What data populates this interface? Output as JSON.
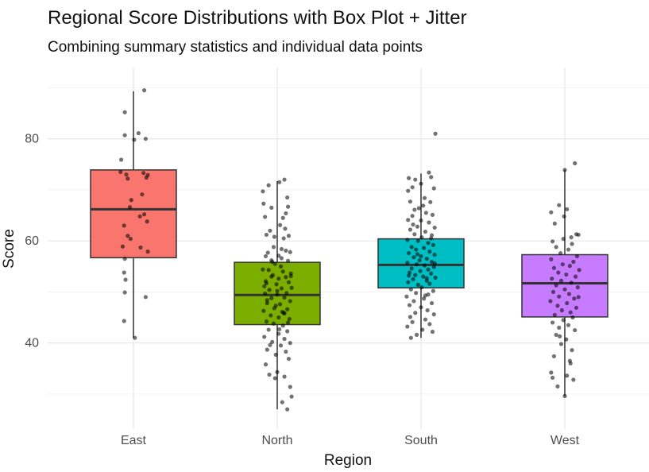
{
  "chart_data": {
    "type": "box",
    "title": "Regional Score Distributions with Box Plot + Jitter",
    "subtitle": "Combining summary statistics and individual data points",
    "xlabel": "Region",
    "ylabel": "Score",
    "ylim": [
      25,
      91
    ],
    "yticks": [
      40,
      60,
      80
    ],
    "grid": true,
    "legend": "none",
    "categories": [
      "East",
      "North",
      "South",
      "West"
    ],
    "colors": [
      "#F8766D",
      "#7CAE00",
      "#00BFC4",
      "#C77CFF"
    ],
    "boxes": [
      {
        "q1": 56.7,
        "median": 66.2,
        "q3": 73.9,
        "whisker_low": 41.0,
        "whisker_high": 89.3
      },
      {
        "q1": 43.6,
        "median": 49.4,
        "q3": 55.8,
        "whisker_low": 27.0,
        "whisker_high": 71.7
      },
      {
        "q1": 50.8,
        "median": 55.3,
        "q3": 60.4,
        "whisker_low": 41.0,
        "whisker_high": 73.2
      },
      {
        "q1": 45.1,
        "median": 51.7,
        "q3": 57.3,
        "whisker_low": 29.6,
        "whisker_high": 73.9
      }
    ],
    "points": [
      [
        [
          -0.13,
          44.3
        ],
        [
          0.02,
          41.0
        ],
        [
          -0.12,
          85.2
        ],
        [
          -0.12,
          80.7
        ],
        [
          0.01,
          79.8
        ],
        [
          0.07,
          81.1
        ],
        [
          0.17,
          80.0
        ],
        [
          -0.17,
          75.9
        ],
        [
          -0.18,
          73.5
        ],
        [
          -0.1,
          73.0
        ],
        [
          -0.08,
          72.2
        ],
        [
          0.14,
          73.3
        ],
        [
          0.18,
          72.4
        ],
        [
          0.2,
          72.9
        ],
        [
          -0.03,
          68.0
        ],
        [
          0.12,
          69.1
        ],
        [
          -0.05,
          66.6
        ],
        [
          0.15,
          65.2
        ],
        [
          0.09,
          64.8
        ],
        [
          0.19,
          63.8
        ],
        [
          -0.13,
          63.0
        ],
        [
          -0.08,
          61.0
        ],
        [
          -0.04,
          60.4
        ],
        [
          -0.15,
          58.9
        ],
        [
          0.1,
          58.7
        ],
        [
          0.2,
          57.9
        ],
        [
          -0.12,
          56.5
        ],
        [
          -0.11,
          52.4
        ],
        [
          -0.12,
          49.9
        ],
        [
          -0.13,
          53.8
        ],
        [
          0.17,
          49.0
        ],
        [
          0.15,
          89.5
        ]
      ],
      [
        [
          -0.2,
          69.7
        ],
        [
          -0.12,
          70.9
        ],
        [
          0.03,
          71.5
        ],
        [
          0.1,
          72.0
        ],
        [
          0.14,
          68.5
        ],
        [
          -0.19,
          67.3
        ],
        [
          -0.08,
          66.5
        ],
        [
          0.15,
          66.7
        ],
        [
          -0.17,
          64.7
        ],
        [
          0.08,
          64.5
        ],
        [
          0.12,
          65.4
        ],
        [
          0.04,
          63.1
        ],
        [
          -0.1,
          62.0
        ],
        [
          -0.15,
          61.2
        ],
        [
          0.09,
          60.5
        ],
        [
          0.16,
          61.0
        ],
        [
          -0.05,
          58.8
        ],
        [
          0.12,
          58.1
        ],
        [
          0.02,
          57.1
        ],
        [
          0.18,
          57.8
        ],
        [
          -0.16,
          57.0
        ],
        [
          -0.08,
          56.2
        ],
        [
          0.06,
          56.6
        ],
        [
          0.15,
          56.1
        ],
        [
          -0.03,
          55.5
        ],
        [
          -0.2,
          54.4
        ],
        [
          -0.12,
          54.3
        ],
        [
          0.08,
          54.0
        ],
        [
          0.19,
          53.6
        ],
        [
          -0.06,
          53.3
        ],
        [
          0.02,
          52.6
        ],
        [
          0.12,
          52.9
        ],
        [
          -0.15,
          51.7
        ],
        [
          -0.01,
          51.5
        ],
        [
          0.16,
          51.9
        ],
        [
          -0.11,
          50.4
        ],
        [
          0.06,
          50.7
        ],
        [
          0.2,
          50.8
        ],
        [
          -0.17,
          49.7
        ],
        [
          0.0,
          49.5
        ],
        [
          -0.08,
          48.8
        ],
        [
          0.1,
          48.9
        ],
        [
          0.18,
          48.2
        ],
        [
          -0.14,
          47.8
        ],
        [
          0.04,
          47.6
        ],
        [
          -0.04,
          46.8
        ],
        [
          0.14,
          46.6
        ],
        [
          -0.19,
          46.3
        ],
        [
          0.1,
          45.8
        ],
        [
          -0.09,
          45.4
        ],
        [
          0.02,
          45.0
        ],
        [
          0.17,
          44.7
        ],
        [
          -0.15,
          44.2
        ],
        [
          -0.05,
          43.8
        ],
        [
          0.08,
          43.4
        ],
        [
          -0.12,
          42.6
        ],
        [
          0.14,
          42.3
        ],
        [
          0.02,
          41.8
        ],
        [
          -0.18,
          41.2
        ],
        [
          0.1,
          40.8
        ],
        [
          -0.07,
          40.2
        ],
        [
          0.18,
          40.0
        ],
        [
          0.05,
          39.5
        ],
        [
          -0.14,
          38.7
        ],
        [
          0.12,
          38.3
        ],
        [
          -0.02,
          37.7
        ],
        [
          0.16,
          36.9
        ],
        [
          -0.16,
          35.8
        ],
        [
          0.0,
          34.3
        ],
        [
          0.1,
          33.4
        ],
        [
          -0.11,
          33.8
        ],
        [
          0.18,
          31.4
        ],
        [
          -0.03,
          33.1
        ],
        [
          0.2,
          29.5
        ],
        [
          0.07,
          28.4
        ],
        [
          0.14,
          27.0
        ],
        [
          -0.08,
          53.0
        ],
        [
          0.05,
          55.0
        ],
        [
          -0.13,
          57.7
        ],
        [
          0.09,
          45.9
        ],
        [
          -0.02,
          47.3
        ],
        [
          0.13,
          49.8
        ],
        [
          -0.18,
          51.1
        ],
        [
          0.03,
          42.7
        ],
        [
          -0.1,
          39.6
        ],
        [
          0.15,
          44.0
        ],
        [
          0.06,
          58.4
        ],
        [
          -0.04,
          60.8
        ],
        [
          0.11,
          62.4
        ],
        [
          -0.14,
          48.4
        ],
        [
          0.19,
          53.1
        ],
        [
          -0.07,
          55.9
        ],
        [
          0.07,
          46.1
        ],
        [
          0.0,
          50.2
        ],
        [
          -0.16,
          52.1
        ]
      ],
      [
        [
          0.2,
          81.0
        ],
        [
          0.11,
          73.4
        ],
        [
          0.14,
          72.5
        ],
        [
          -0.17,
          72.3
        ],
        [
          -0.08,
          72.0
        ],
        [
          0.0,
          71.2
        ],
        [
          -0.12,
          70.5
        ],
        [
          0.18,
          70.3
        ],
        [
          -0.18,
          69.8
        ],
        [
          0.05,
          68.4
        ],
        [
          -0.15,
          67.7
        ],
        [
          0.13,
          67.6
        ],
        [
          -0.03,
          66.4
        ],
        [
          -0.09,
          66.1
        ],
        [
          0.07,
          65.5
        ],
        [
          0.16,
          65.1
        ],
        [
          -0.12,
          64.9
        ],
        [
          -0.18,
          64.1
        ],
        [
          0.0,
          64.0
        ],
        [
          0.11,
          63.6
        ],
        [
          -0.05,
          62.8
        ],
        [
          0.19,
          62.6
        ],
        [
          -0.15,
          62.2
        ],
        [
          0.06,
          61.8
        ],
        [
          -0.09,
          61.3
        ],
        [
          0.15,
          61.1
        ],
        [
          0.01,
          60.7
        ],
        [
          -0.19,
          60.2
        ],
        [
          -0.04,
          60.0
        ],
        [
          0.1,
          59.6
        ],
        [
          0.17,
          59.2
        ],
        [
          -0.13,
          58.8
        ],
        [
          0.04,
          58.6
        ],
        [
          -0.07,
          58.3
        ],
        [
          0.12,
          57.9
        ],
        [
          -0.17,
          57.6
        ],
        [
          0.19,
          57.3
        ],
        [
          0.0,
          57.0
        ],
        [
          -0.1,
          56.8
        ],
        [
          0.08,
          56.5
        ],
        [
          -0.02,
          56.2
        ],
        [
          0.15,
          55.9
        ],
        [
          -0.19,
          55.7
        ],
        [
          -0.06,
          55.4
        ],
        [
          0.05,
          55.2
        ],
        [
          0.18,
          54.9
        ],
        [
          -0.13,
          54.6
        ],
        [
          0.1,
          54.4
        ],
        [
          -0.01,
          54.1
        ],
        [
          -0.16,
          53.8
        ],
        [
          0.14,
          53.6
        ],
        [
          -0.08,
          53.3
        ],
        [
          0.03,
          53.0
        ],
        [
          0.2,
          52.8
        ],
        [
          -0.11,
          52.5
        ],
        [
          0.08,
          52.2
        ],
        [
          -0.18,
          51.9
        ],
        [
          0.12,
          51.6
        ],
        [
          -0.04,
          51.4
        ],
        [
          0.01,
          50.9
        ],
        [
          -0.14,
          50.5
        ],
        [
          0.17,
          50.2
        ],
        [
          -0.07,
          49.8
        ],
        [
          0.1,
          49.5
        ],
        [
          -0.2,
          49.1
        ],
        [
          0.04,
          48.7
        ],
        [
          -0.1,
          48.2
        ],
        [
          0.15,
          47.8
        ],
        [
          -0.16,
          47.4
        ],
        [
          0.0,
          47.0
        ],
        [
          0.09,
          46.4
        ],
        [
          -0.08,
          45.9
        ],
        [
          0.18,
          45.6
        ],
        [
          -0.15,
          45.1
        ],
        [
          0.06,
          44.6
        ],
        [
          -0.12,
          44.1
        ],
        [
          0.12,
          43.7
        ],
        [
          -0.19,
          43.2
        ],
        [
          0.02,
          42.6
        ],
        [
          0.16,
          42.2
        ],
        [
          -0.06,
          41.6
        ],
        [
          -0.14,
          41.0
        ],
        [
          0.08,
          52.7
        ],
        [
          -0.05,
          57.4
        ],
        [
          0.14,
          60.5
        ],
        [
          -0.11,
          63.2
        ],
        [
          0.03,
          66.9
        ],
        [
          0.19,
          55.6
        ],
        [
          -0.17,
          53.2
        ],
        [
          0.06,
          49.3
        ]
      ],
      [
        [
          0.14,
          75.2
        ],
        [
          0.0,
          73.9
        ],
        [
          -0.08,
          67.0
        ],
        [
          -0.19,
          65.6
        ],
        [
          0.03,
          66.2
        ],
        [
          -0.01,
          64.8
        ],
        [
          -0.14,
          63.4
        ],
        [
          0.16,
          61.3
        ],
        [
          0.19,
          61.2
        ],
        [
          0.09,
          60.7
        ],
        [
          -0.02,
          60.4
        ],
        [
          -0.17,
          59.9
        ],
        [
          0.1,
          59.4
        ],
        [
          -0.12,
          58.8
        ],
        [
          0.05,
          58.3
        ],
        [
          -0.06,
          57.6
        ],
        [
          0.17,
          57.0
        ],
        [
          -0.19,
          56.4
        ],
        [
          0.12,
          55.9
        ],
        [
          -0.03,
          55.4
        ],
        [
          0.07,
          55.1
        ],
        [
          -0.15,
          54.7
        ],
        [
          0.2,
          54.3
        ],
        [
          -0.09,
          53.8
        ],
        [
          0.02,
          53.4
        ],
        [
          0.15,
          53.0
        ],
        [
          -0.18,
          52.6
        ],
        [
          -0.05,
          52.2
        ],
        [
          0.09,
          51.8
        ],
        [
          -0.12,
          51.3
        ],
        [
          0.18,
          50.9
        ],
        [
          0.0,
          50.5
        ],
        [
          -0.16,
          50.0
        ],
        [
          0.06,
          49.6
        ],
        [
          -0.08,
          49.1
        ],
        [
          0.13,
          48.7
        ],
        [
          -0.2,
          48.2
        ],
        [
          0.03,
          47.8
        ],
        [
          -0.1,
          47.3
        ],
        [
          0.16,
          46.9
        ],
        [
          -0.04,
          46.4
        ],
        [
          0.08,
          46.0
        ],
        [
          -0.14,
          45.5
        ],
        [
          0.11,
          45.0
        ],
        [
          -0.02,
          44.5
        ],
        [
          -0.17,
          44.0
        ],
        [
          0.05,
          43.5
        ],
        [
          -0.08,
          43.0
        ],
        [
          0.14,
          42.5
        ],
        [
          -0.12,
          41.6
        ],
        [
          0.02,
          40.7
        ],
        [
          -0.05,
          39.8
        ],
        [
          0.1,
          38.6
        ],
        [
          -0.15,
          37.4
        ],
        [
          0.07,
          36.5
        ],
        [
          -0.19,
          34.2
        ],
        [
          0.03,
          33.6
        ],
        [
          0.12,
          32.8
        ],
        [
          -0.1,
          31.5
        ],
        [
          0.0,
          29.6
        ],
        [
          -0.17,
          33.2
        ],
        [
          0.08,
          36.0
        ],
        [
          -0.07,
          41.3
        ],
        [
          0.19,
          49.0
        ]
      ]
    ]
  }
}
